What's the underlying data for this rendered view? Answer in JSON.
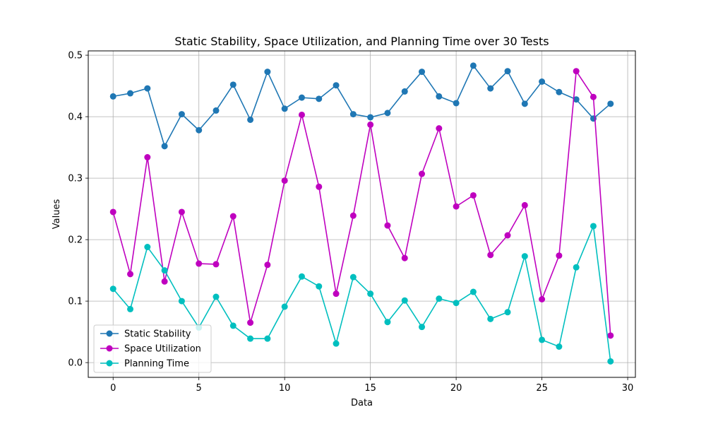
{
  "chart_data": {
    "type": "line",
    "title": "Static Stability, Space Utilization, and Planning Time over 30 Tests",
    "xlabel": "Data",
    "ylabel": "Values",
    "xlim": [
      -1.45,
      30.45
    ],
    "ylim": [
      -0.024,
      0.507
    ],
    "x_ticks": [
      0,
      5,
      10,
      15,
      20,
      25,
      30
    ],
    "y_ticks": [
      0.0,
      0.1,
      0.2,
      0.3,
      0.4,
      0.5
    ],
    "x_tick_labels": [
      "0",
      "5",
      "10",
      "15",
      "20",
      "25",
      "30"
    ],
    "y_tick_labels": [
      "0.0",
      "0.1",
      "0.2",
      "0.3",
      "0.4",
      "0.5"
    ],
    "grid": true,
    "legend_position": "lower-left",
    "x": [
      0,
      1,
      2,
      3,
      4,
      5,
      6,
      7,
      8,
      9,
      10,
      11,
      12,
      13,
      14,
      15,
      16,
      17,
      18,
      19,
      20,
      21,
      22,
      23,
      24,
      25,
      26,
      27,
      28,
      29
    ],
    "series": [
      {
        "name": "Static Stability",
        "color": "#1f77b4",
        "marker": "circle",
        "values": [
          0.433,
          0.438,
          0.446,
          0.352,
          0.404,
          0.378,
          0.41,
          0.452,
          0.395,
          0.473,
          0.413,
          0.431,
          0.429,
          0.451,
          0.404,
          0.399,
          0.406,
          0.441,
          0.473,
          0.433,
          0.422,
          0.483,
          0.446,
          0.474,
          0.421,
          0.457,
          0.44,
          0.428,
          0.397,
          0.421
        ]
      },
      {
        "name": "Space Utilization",
        "color": "#bf00bf",
        "marker": "circle",
        "values": [
          0.245,
          0.144,
          0.334,
          0.132,
          0.245,
          0.161,
          0.16,
          0.238,
          0.065,
          0.159,
          0.296,
          0.403,
          0.286,
          0.112,
          0.239,
          0.387,
          0.223,
          0.17,
          0.307,
          0.381,
          0.254,
          0.272,
          0.175,
          0.207,
          0.256,
          0.103,
          0.174,
          0.474,
          0.432,
          0.044
        ]
      },
      {
        "name": "Planning Time",
        "color": "#00bfbf",
        "marker": "circle",
        "values": [
          0.12,
          0.087,
          0.188,
          0.15,
          0.1,
          0.057,
          0.107,
          0.06,
          0.039,
          0.039,
          0.091,
          0.14,
          0.124,
          0.031,
          0.139,
          0.112,
          0.066,
          0.101,
          0.058,
          0.104,
          0.097,
          0.115,
          0.071,
          0.082,
          0.173,
          0.037,
          0.026,
          0.155,
          0.222,
          0.002
        ]
      }
    ]
  }
}
